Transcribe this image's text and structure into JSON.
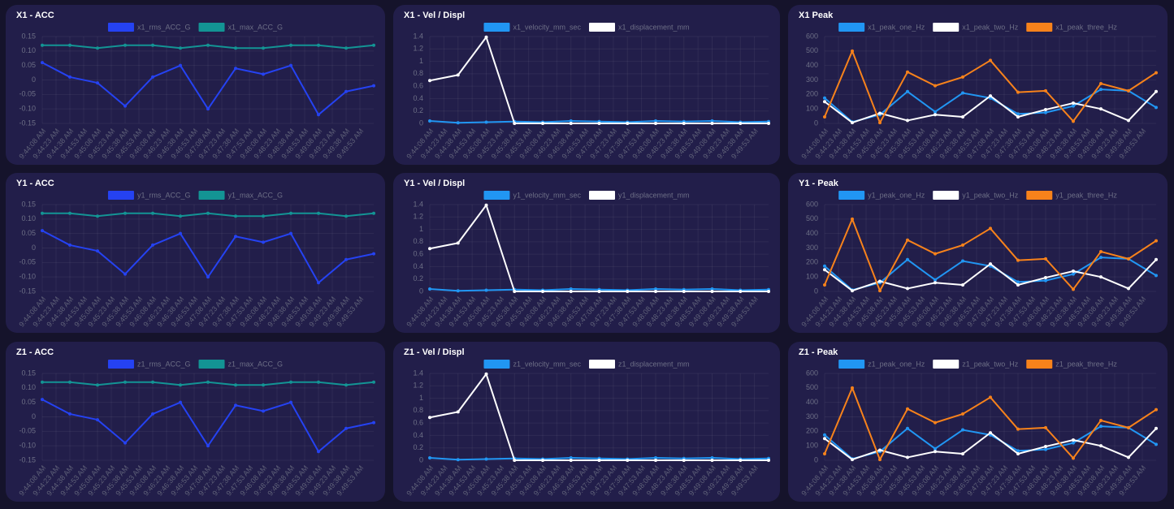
{
  "chart_data": [
    {
      "type": "line",
      "title": "X1 - ACC",
      "x": [
        "9:44:08 AM",
        "9:44:38 AM",
        "9:45:08 AM",
        "9:45:38 AM",
        "9:46:08 AM",
        "9:46:38 AM",
        "9:47:08 AM",
        "9:47:38 AM",
        "9:48:08 AM",
        "9:48:38 AM",
        "9:49:08 AM",
        "9:49:38 AM",
        "9:50:08 AM"
      ],
      "xticks": [
        "9:44:08 AM",
        "9:44:23 AM",
        "9:44:38 AM",
        "9:44:53 AM",
        "9:45:08 AM",
        "9:45:23 AM",
        "9:45:38 AM",
        "9:45:53 AM",
        "9:46:08 AM",
        "9:46:23 AM",
        "9:46:38 AM",
        "9:46:53 AM",
        "9:47:08 AM",
        "9:47:23 AM",
        "9:47:38 AM",
        "9:47:53 AM",
        "9:48:08 AM",
        "9:48:23 AM",
        "9:48:38 AM",
        "9:48:53 AM",
        "9:49:08 AM",
        "9:49:23 AM",
        "9:49:38 AM",
        "9:49:53 AM"
      ],
      "ylim": [
        -0.15,
        0.15
      ],
      "yticks": [
        -0.15,
        {
          "value": -0.1,
          "label": "-0.10"
        },
        -0.05,
        0,
        0.05,
        {
          "value": 0.1,
          "label": "0.10"
        },
        0.15
      ],
      "grid": true,
      "series": [
        {
          "name": "x1_rms_ACC_G",
          "color": "#2542f2",
          "values": [
            0.06,
            0.01,
            -0.01,
            -0.09,
            0.01,
            0.05,
            -0.1,
            0.04,
            0.02,
            0.05,
            -0.12,
            -0.04,
            -0.02
          ]
        },
        {
          "name": "x1_max_ACC_G",
          "color": "#139494",
          "values": [
            0.12,
            0.12,
            0.11,
            0.12,
            0.12,
            0.11,
            0.12,
            0.11,
            0.11,
            0.12,
            0.12,
            0.11,
            0.12
          ]
        }
      ]
    },
    {
      "type": "line",
      "title": "X1 - Vel / Displ",
      "x": [
        "9:44:08 AM",
        "9:44:38 AM",
        "9:45:08 AM",
        "9:45:38 AM",
        "9:46:08 AM",
        "9:46:38 AM",
        "9:47:08 AM",
        "9:47:38 AM",
        "9:48:08 AM",
        "9:48:38 AM",
        "9:49:08 AM",
        "9:49:38 AM",
        "9:50:08 AM"
      ],
      "xticks": [
        "9:44:08 AM",
        "9:44:23 AM",
        "9:44:38 AM",
        "9:44:53 AM",
        "9:45:08 AM",
        "9:45:23 AM",
        "9:45:38 AM",
        "9:45:53 AM",
        "9:46:08 AM",
        "9:46:23 AM",
        "9:46:38 AM",
        "9:46:53 AM",
        "9:47:08 AM",
        "9:47:23 AM",
        "9:47:38 AM",
        "9:47:53 AM",
        "9:48:08 AM",
        "9:48:23 AM",
        "9:48:38 AM",
        "9:48:53 AM",
        "9:49:08 AM",
        "9:49:23 AM",
        "9:49:38 AM",
        "9:49:53 AM"
      ],
      "ylim": [
        0,
        1.4
      ],
      "yticks": [
        0,
        0.2,
        0.4,
        0.6,
        0.8,
        1,
        1.2,
        1.4
      ],
      "grid": true,
      "series": [
        {
          "name": "x1_velocity_mm_sec",
          "color": "#2196f3",
          "values": [
            0.04,
            0.01,
            0.02,
            0.03,
            0.02,
            0.04,
            0.03,
            0.02,
            0.04,
            0.03,
            0.04,
            0.02,
            0.03
          ]
        },
        {
          "name": "x1_displacement_mm",
          "color": "#ffffff",
          "values": [
            0.69,
            0.78,
            1.39,
            0,
            0,
            0,
            0,
            0,
            0,
            0,
            0,
            0,
            0
          ]
        }
      ]
    },
    {
      "type": "line",
      "title": "X1 Peak",
      "x": [
        "9:44:08 AM",
        "9:44:38 AM",
        "9:45:08 AM",
        "9:45:38 AM",
        "9:46:08 AM",
        "9:46:38 AM",
        "9:47:08 AM",
        "9:47:38 AM",
        "9:48:08 AM",
        "9:48:38 AM",
        "9:49:08 AM",
        "9:49:38 AM",
        "9:50:08 AM"
      ],
      "xticks": [
        "9:44:08 AM",
        "9:44:23 AM",
        "9:44:38 AM",
        "9:44:53 AM",
        "9:45:08 AM",
        "9:45:23 AM",
        "9:45:38 AM",
        "9:45:53 AM",
        "9:46:08 AM",
        "9:46:23 AM",
        "9:46:38 AM",
        "9:46:53 AM",
        "9:47:08 AM",
        "9:47:23 AM",
        "9:47:38 AM",
        "9:47:53 AM",
        "9:48:08 AM",
        "9:48:23 AM",
        "9:48:38 AM",
        "9:48:53 AM",
        "9:49:08 AM",
        "9:49:23 AM",
        "9:49:38 AM",
        "9:49:53 AM"
      ],
      "ylim": [
        0,
        600
      ],
      "yticks": [
        0,
        100,
        200,
        300,
        400,
        500,
        600
      ],
      "grid": true,
      "series": [
        {
          "name": "x1_peak_one_Hz",
          "color": "#2196f3",
          "values": [
            175,
            10,
            60,
            220,
            80,
            210,
            175,
            65,
            75,
            120,
            235,
            225,
            110
          ]
        },
        {
          "name": "x1_peak_two_Hz",
          "color": "#ffffff",
          "values": [
            150,
            5,
            70,
            20,
            60,
            45,
            190,
            45,
            95,
            140,
            100,
            20,
            220
          ]
        },
        {
          "name": "x1_peak_three_Hz",
          "color": "#f7821b",
          "values": [
            45,
            500,
            5,
            355,
            260,
            320,
            435,
            215,
            225,
            15,
            275,
            225,
            350
          ]
        }
      ]
    },
    {
      "type": "line",
      "title": "Y1 - ACC",
      "x": [
        "9:44:08 AM",
        "9:44:38 AM",
        "9:45:08 AM",
        "9:45:38 AM",
        "9:46:08 AM",
        "9:46:38 AM",
        "9:47:08 AM",
        "9:47:38 AM",
        "9:48:08 AM",
        "9:48:38 AM",
        "9:49:08 AM",
        "9:49:38 AM",
        "9:50:08 AM"
      ],
      "xticks": [
        "9:44:08 AM",
        "9:44:23 AM",
        "9:44:38 AM",
        "9:44:53 AM",
        "9:45:08 AM",
        "9:45:23 AM",
        "9:45:38 AM",
        "9:45:53 AM",
        "9:46:08 AM",
        "9:46:23 AM",
        "9:46:38 AM",
        "9:46:53 AM",
        "9:47:08 AM",
        "9:47:23 AM",
        "9:47:38 AM",
        "9:47:53 AM",
        "9:48:08 AM",
        "9:48:23 AM",
        "9:48:38 AM",
        "9:48:53 AM",
        "9:49:08 AM",
        "9:49:23 AM",
        "9:49:38 AM",
        "9:49:53 AM"
      ],
      "ylim": [
        -0.15,
        0.15
      ],
      "yticks": [
        -0.15,
        {
          "value": -0.1,
          "label": "-0.10"
        },
        -0.05,
        0,
        0.05,
        {
          "value": 0.1,
          "label": "0.10"
        },
        0.15
      ],
      "grid": true,
      "series": [
        {
          "name": "y1_rms_ACC_G",
          "color": "#2542f2",
          "values": [
            0.06,
            0.01,
            -0.01,
            -0.09,
            0.01,
            0.05,
            -0.1,
            0.04,
            0.02,
            0.05,
            -0.12,
            -0.04,
            -0.02
          ]
        },
        {
          "name": "y1_max_ACC_G",
          "color": "#139494",
          "values": [
            0.12,
            0.12,
            0.11,
            0.12,
            0.12,
            0.11,
            0.12,
            0.11,
            0.11,
            0.12,
            0.12,
            0.11,
            0.12
          ]
        }
      ]
    },
    {
      "type": "line",
      "title": "Y1 - Vel / Displ",
      "x": [
        "9:44:08 AM",
        "9:44:38 AM",
        "9:45:08 AM",
        "9:45:38 AM",
        "9:46:08 AM",
        "9:46:38 AM",
        "9:47:08 AM",
        "9:47:38 AM",
        "9:48:08 AM",
        "9:48:38 AM",
        "9:49:08 AM",
        "9:49:38 AM",
        "9:50:08 AM"
      ],
      "xticks": [
        "9:44:08 AM",
        "9:44:23 AM",
        "9:44:38 AM",
        "9:44:53 AM",
        "9:45:08 AM",
        "9:45:23 AM",
        "9:45:38 AM",
        "9:45:53 AM",
        "9:46:08 AM",
        "9:46:23 AM",
        "9:46:38 AM",
        "9:46:53 AM",
        "9:47:08 AM",
        "9:47:23 AM",
        "9:47:38 AM",
        "9:47:53 AM",
        "9:48:08 AM",
        "9:48:23 AM",
        "9:48:38 AM",
        "9:48:53 AM",
        "9:49:08 AM",
        "9:49:23 AM",
        "9:49:38 AM",
        "9:49:53 AM"
      ],
      "ylim": [
        0,
        1.4
      ],
      "yticks": [
        0,
        0.2,
        0.4,
        0.6,
        0.8,
        1,
        1.2,
        1.4
      ],
      "grid": true,
      "series": [
        {
          "name": "y1_velocity_mm_sec",
          "color": "#2196f3",
          "values": [
            0.04,
            0.01,
            0.02,
            0.03,
            0.02,
            0.04,
            0.03,
            0.02,
            0.04,
            0.03,
            0.04,
            0.02,
            0.03
          ]
        },
        {
          "name": "y1_displacement_mm",
          "color": "#ffffff",
          "values": [
            0.69,
            0.78,
            1.39,
            0,
            0,
            0,
            0,
            0,
            0,
            0,
            0,
            0,
            0
          ]
        }
      ]
    },
    {
      "type": "line",
      "title": "Y1 - Peak",
      "x": [
        "9:44:08 AM",
        "9:44:38 AM",
        "9:45:08 AM",
        "9:45:38 AM",
        "9:46:08 AM",
        "9:46:38 AM",
        "9:47:08 AM",
        "9:47:38 AM",
        "9:48:08 AM",
        "9:48:38 AM",
        "9:49:08 AM",
        "9:49:38 AM",
        "9:50:08 AM"
      ],
      "xticks": [
        "9:44:08 AM",
        "9:44:23 AM",
        "9:44:38 AM",
        "9:44:53 AM",
        "9:45:08 AM",
        "9:45:23 AM",
        "9:45:38 AM",
        "9:45:53 AM",
        "9:46:08 AM",
        "9:46:23 AM",
        "9:46:38 AM",
        "9:46:53 AM",
        "9:47:08 AM",
        "9:47:23 AM",
        "9:47:38 AM",
        "9:47:53 AM",
        "9:48:08 AM",
        "9:48:23 AM",
        "9:48:38 AM",
        "9:48:53 AM",
        "9:49:08 AM",
        "9:49:23 AM",
        "9:49:38 AM",
        "9:49:53 AM"
      ],
      "ylim": [
        0,
        600
      ],
      "yticks": [
        0,
        100,
        200,
        300,
        400,
        500,
        600
      ],
      "grid": true,
      "series": [
        {
          "name": "y1_peak_one_Hz",
          "color": "#2196f3",
          "values": [
            175,
            10,
            60,
            220,
            80,
            210,
            175,
            65,
            75,
            120,
            235,
            225,
            110
          ]
        },
        {
          "name": "y1_peak_two_Hz",
          "color": "#ffffff",
          "values": [
            150,
            5,
            70,
            20,
            60,
            45,
            190,
            45,
            95,
            140,
            100,
            20,
            220
          ]
        },
        {
          "name": "y1_peak_three_Hz",
          "color": "#f7821b",
          "values": [
            45,
            500,
            5,
            355,
            260,
            320,
            435,
            215,
            225,
            15,
            275,
            225,
            350
          ]
        }
      ]
    },
    {
      "type": "line",
      "title": "Z1 - ACC",
      "x": [
        "9:44:08 AM",
        "9:44:38 AM",
        "9:45:08 AM",
        "9:45:38 AM",
        "9:46:08 AM",
        "9:46:38 AM",
        "9:47:08 AM",
        "9:47:38 AM",
        "9:48:08 AM",
        "9:48:38 AM",
        "9:49:08 AM",
        "9:49:38 AM",
        "9:50:08 AM"
      ],
      "xticks": [
        "9:44:08 AM",
        "9:44:23 AM",
        "9:44:38 AM",
        "9:44:53 AM",
        "9:45:08 AM",
        "9:45:23 AM",
        "9:45:38 AM",
        "9:45:53 AM",
        "9:46:08 AM",
        "9:46:23 AM",
        "9:46:38 AM",
        "9:46:53 AM",
        "9:47:08 AM",
        "9:47:23 AM",
        "9:47:38 AM",
        "9:47:53 AM",
        "9:48:08 AM",
        "9:48:23 AM",
        "9:48:38 AM",
        "9:48:53 AM",
        "9:49:08 AM",
        "9:49:23 AM",
        "9:49:38 AM",
        "9:49:53 AM"
      ],
      "ylim": [
        -0.15,
        0.15
      ],
      "yticks": [
        -0.15,
        {
          "value": -0.1,
          "label": "-0.10"
        },
        -0.05,
        0,
        0.05,
        {
          "value": 0.1,
          "label": "0.10"
        },
        0.15
      ],
      "grid": true,
      "series": [
        {
          "name": "z1_rms_ACC_G",
          "color": "#2542f2",
          "values": [
            0.06,
            0.01,
            -0.01,
            -0.09,
            0.01,
            0.05,
            -0.1,
            0.04,
            0.02,
            0.05,
            -0.12,
            -0.04,
            -0.02
          ]
        },
        {
          "name": "z1_max_ACC_G",
          "color": "#139494",
          "values": [
            0.12,
            0.12,
            0.11,
            0.12,
            0.12,
            0.11,
            0.12,
            0.11,
            0.11,
            0.12,
            0.12,
            0.11,
            0.12
          ]
        }
      ]
    },
    {
      "type": "line",
      "title": "Z1 - Vel / Displ",
      "x": [
        "9:44:08 AM",
        "9:44:38 AM",
        "9:45:08 AM",
        "9:45:38 AM",
        "9:46:08 AM",
        "9:46:38 AM",
        "9:47:08 AM",
        "9:47:38 AM",
        "9:48:08 AM",
        "9:48:38 AM",
        "9:49:08 AM",
        "9:49:38 AM",
        "9:50:08 AM"
      ],
      "xticks": [
        "9:44:08 AM",
        "9:44:23 AM",
        "9:44:38 AM",
        "9:44:53 AM",
        "9:45:08 AM",
        "9:45:23 AM",
        "9:45:38 AM",
        "9:45:53 AM",
        "9:46:08 AM",
        "9:46:23 AM",
        "9:46:38 AM",
        "9:46:53 AM",
        "9:47:08 AM",
        "9:47:23 AM",
        "9:47:38 AM",
        "9:47:53 AM",
        "9:48:08 AM",
        "9:48:23 AM",
        "9:48:38 AM",
        "9:48:53 AM",
        "9:49:08 AM",
        "9:49:23 AM",
        "9:49:38 AM",
        "9:49:53 AM"
      ],
      "ylim": [
        0,
        1.4
      ],
      "yticks": [
        0,
        0.2,
        0.4,
        0.6,
        0.8,
        1,
        1.2,
        1.4
      ],
      "grid": true,
      "series": [
        {
          "name": "z1_velocity_mm_sec",
          "color": "#2196f3",
          "values": [
            0.04,
            0.01,
            0.02,
            0.03,
            0.02,
            0.04,
            0.03,
            0.02,
            0.04,
            0.03,
            0.04,
            0.02,
            0.03
          ]
        },
        {
          "name": "z1_displacement_mm",
          "color": "#ffffff",
          "values": [
            0.69,
            0.78,
            1.39,
            0,
            0,
            0,
            0,
            0,
            0,
            0,
            0,
            0,
            0
          ]
        }
      ]
    },
    {
      "type": "line",
      "title": "Z1 - Peak",
      "x": [
        "9:44:08 AM",
        "9:44:38 AM",
        "9:45:08 AM",
        "9:45:38 AM",
        "9:46:08 AM",
        "9:46:38 AM",
        "9:47:08 AM",
        "9:47:38 AM",
        "9:48:08 AM",
        "9:48:38 AM",
        "9:49:08 AM",
        "9:49:38 AM",
        "9:50:08 AM"
      ],
      "xticks": [
        "9:44:08 AM",
        "9:44:23 AM",
        "9:44:38 AM",
        "9:44:53 AM",
        "9:45:08 AM",
        "9:45:23 AM",
        "9:45:38 AM",
        "9:45:53 AM",
        "9:46:08 AM",
        "9:46:23 AM",
        "9:46:38 AM",
        "9:46:53 AM",
        "9:47:08 AM",
        "9:47:23 AM",
        "9:47:38 AM",
        "9:47:53 AM",
        "9:48:08 AM",
        "9:48:23 AM",
        "9:48:38 AM",
        "9:48:53 AM",
        "9:49:08 AM",
        "9:49:23 AM",
        "9:49:38 AM",
        "9:49:53 AM"
      ],
      "ylim": [
        0,
        600
      ],
      "yticks": [
        0,
        100,
        200,
        300,
        400,
        500,
        600
      ],
      "grid": true,
      "series": [
        {
          "name": "z1_peak_one_Hz",
          "color": "#2196f3",
          "values": [
            175,
            10,
            60,
            220,
            80,
            210,
            175,
            65,
            75,
            120,
            235,
            225,
            110
          ]
        },
        {
          "name": "z1_peak_two_Hz",
          "color": "#ffffff",
          "values": [
            150,
            5,
            70,
            20,
            60,
            45,
            190,
            45,
            95,
            140,
            100,
            20,
            220
          ]
        },
        {
          "name": "z1_peak_three_Hz",
          "color": "#f7821b",
          "values": [
            45,
            500,
            5,
            355,
            260,
            320,
            435,
            215,
            225,
            15,
            275,
            225,
            350
          ]
        }
      ]
    }
  ]
}
